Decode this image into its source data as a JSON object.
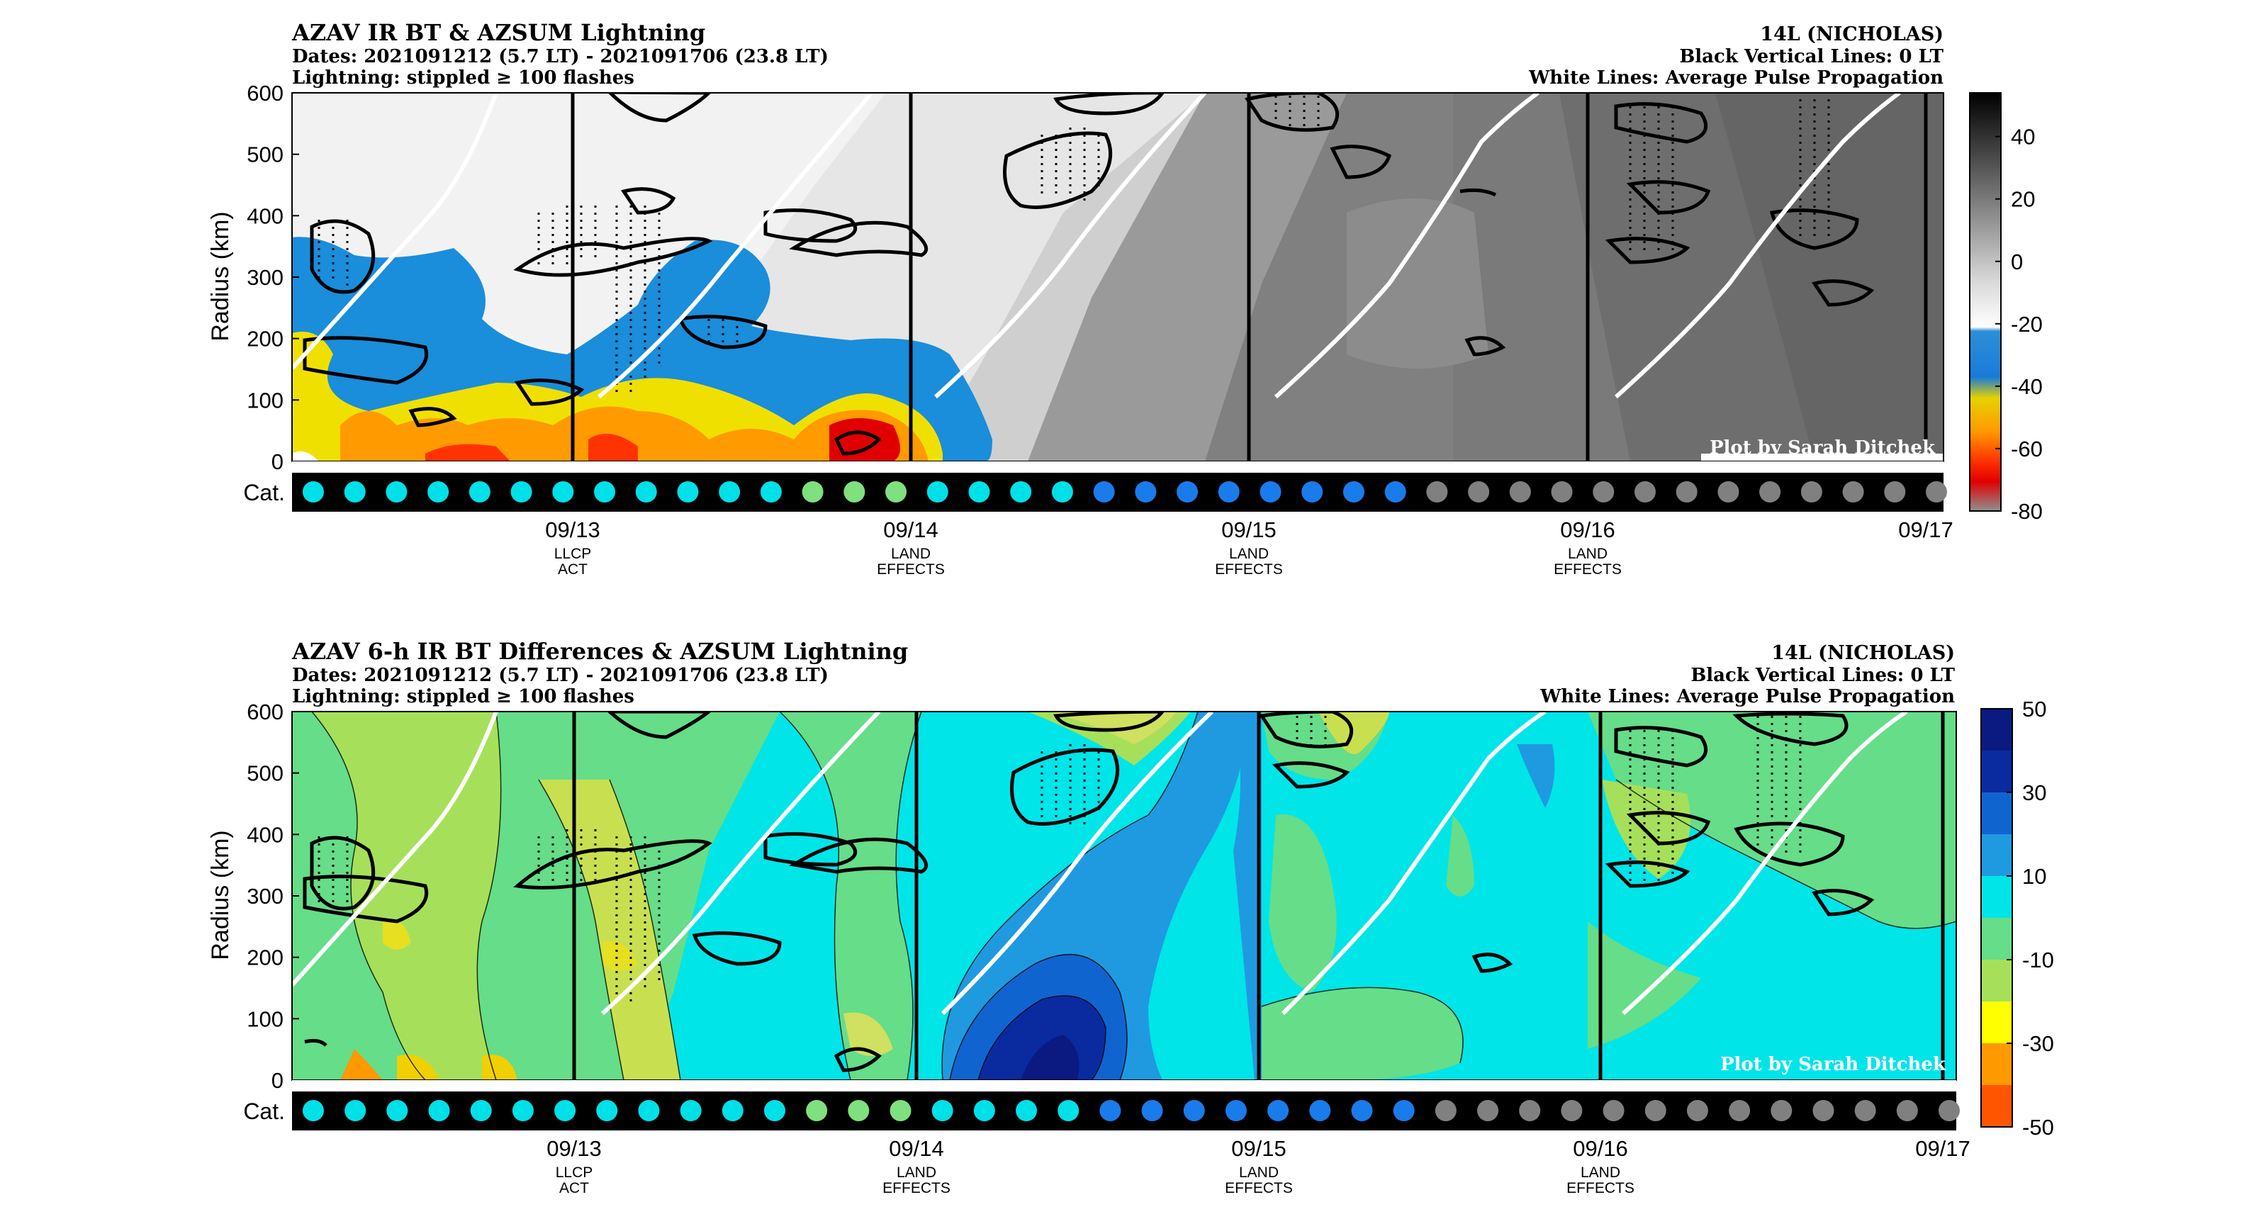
{
  "chart_data": [
    {
      "type": "heatmap",
      "title": "AZAV IR BT & AZSUM Lightning",
      "subtitle_lines": [
        "Dates: 2021091212 (5.7 LT) - 2021091706 (23.8 LT)",
        "Lightning: stippled ≥ 100 flashes"
      ],
      "storm": "14L (NICHOLAS)",
      "right_lines": [
        "Black Vertical Lines: 0 LT",
        "White Lines: Average Pulse Propagation"
      ],
      "credit": "Plot by Sarah Ditchek",
      "ylabel": "Radius (km)",
      "yticks": [
        "600",
        "500",
        "400",
        "300",
        "200",
        "100",
        "0"
      ],
      "ylim": [
        0,
        600
      ],
      "cat_label": "Cat.",
      "xticks": [
        {
          "label": "09/13",
          "note": [
            "LLCP",
            "ACT"
          ]
        },
        {
          "label": "09/14",
          "note": [
            "LAND",
            "EFFECTS"
          ]
        },
        {
          "label": "09/15",
          "note": [
            "LAND",
            "EFFECTS"
          ]
        },
        {
          "label": "09/16",
          "note": [
            "LAND",
            "EFFECTS"
          ]
        },
        {
          "label": "09/17",
          "note": []
        }
      ],
      "colorbar_ticks": [
        "40",
        "20",
        "0",
        "-20",
        "-40",
        "-60",
        "-80"
      ],
      "colorbar_range": [
        -80,
        54
      ],
      "category_colors": [
        "#00e0e8",
        "#00e0e8",
        "#00e0e8",
        "#00e0e8",
        "#00e0e8",
        "#00e0e8",
        "#00e0e8",
        "#00e0e8",
        "#00e0e8",
        "#00e0e8",
        "#00e0e8",
        "#00e0e8",
        "#7ee07e",
        "#7ee07e",
        "#7ee07e",
        "#00e0e8",
        "#00e0e8",
        "#00e0e8",
        "#00e0e8",
        "#1a7bea",
        "#1a7bea",
        "#1a7bea",
        "#1a7bea",
        "#1a7bea",
        "#1a7bea",
        "#1a7bea",
        "#1a7bea",
        "#808080",
        "#808080",
        "#808080",
        "#808080",
        "#808080",
        "#808080",
        "#808080",
        "#808080",
        "#808080",
        "#808080",
        "#808080",
        "#808080",
        "#808080"
      ]
    },
    {
      "type": "heatmap",
      "title": "AZAV 6-h IR BT Differences & AZSUM Lightning",
      "subtitle_lines": [
        "Dates: 2021091212 (5.7 LT) - 2021091706 (23.8 LT)",
        "Lightning: stippled ≥ 100 flashes"
      ],
      "storm": "14L (NICHOLAS)",
      "right_lines": [
        "Black Vertical Lines: 0 LT",
        "White Lines: Average Pulse Propagation"
      ],
      "credit": "Plot by Sarah Ditchek",
      "ylabel": "Radius (km)",
      "yticks": [
        "600",
        "500",
        "400",
        "300",
        "200",
        "100",
        "0"
      ],
      "ylim": [
        0,
        600
      ],
      "cat_label": "Cat.",
      "xticks": [
        {
          "label": "09/13",
          "note": [
            "LLCP",
            "ACT"
          ]
        },
        {
          "label": "09/14",
          "note": [
            "LAND",
            "EFFECTS"
          ]
        },
        {
          "label": "09/15",
          "note": [
            "LAND",
            "EFFECTS"
          ]
        },
        {
          "label": "09/16",
          "note": [
            "LAND",
            "EFFECTS"
          ]
        },
        {
          "label": "09/17",
          "note": []
        }
      ],
      "colorbar_ticks": [
        "50",
        "30",
        "10",
        "-10",
        "-30",
        "-50"
      ],
      "colorbar_range": [
        -50,
        50
      ],
      "category_colors": [
        "#00e0e8",
        "#00e0e8",
        "#00e0e8",
        "#00e0e8",
        "#00e0e8",
        "#00e0e8",
        "#00e0e8",
        "#00e0e8",
        "#00e0e8",
        "#00e0e8",
        "#00e0e8",
        "#00e0e8",
        "#7ee07e",
        "#7ee07e",
        "#7ee07e",
        "#00e0e8",
        "#00e0e8",
        "#00e0e8",
        "#00e0e8",
        "#1a7bea",
        "#1a7bea",
        "#1a7bea",
        "#1a7bea",
        "#1a7bea",
        "#1a7bea",
        "#1a7bea",
        "#1a7bea",
        "#808080",
        "#808080",
        "#808080",
        "#808080",
        "#808080",
        "#808080",
        "#808080",
        "#808080",
        "#808080",
        "#808080",
        "#808080",
        "#808080",
        "#808080"
      ]
    }
  ]
}
